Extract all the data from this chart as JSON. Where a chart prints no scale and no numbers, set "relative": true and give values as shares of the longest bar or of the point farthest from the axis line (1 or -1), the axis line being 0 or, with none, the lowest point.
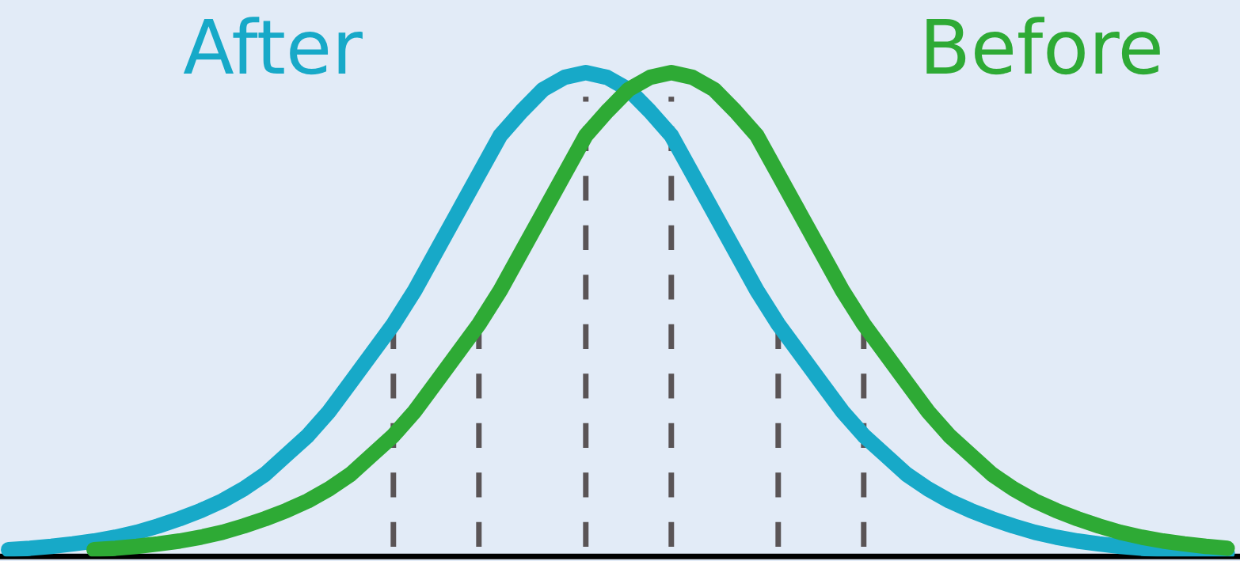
{
  "chart_data": {
    "type": "line",
    "relative": true,
    "categories": [
      null,
      null,
      null,
      null,
      null,
      null,
      null,
      null,
      null,
      null,
      null,
      null,
      null,
      null,
      null,
      null,
      null,
      null,
      null,
      null,
      null,
      null,
      null,
      null,
      null,
      null,
      null,
      null,
      null,
      null,
      null,
      null,
      null,
      null,
      null,
      null,
      null,
      null,
      null,
      null,
      null,
      null,
      null,
      null,
      null,
      null,
      null,
      null,
      null,
      null,
      null,
      null,
      null,
      null,
      null,
      null,
      null,
      null
    ],
    "series": [
      {
        "name": "After",
        "color": "#17a9c8",
        "values": [
          0.014,
          0.017,
          0.021,
          0.026,
          0.032,
          0.04,
          0.05,
          0.063,
          0.078,
          0.095,
          0.115,
          0.14,
          0.17,
          0.21,
          0.25,
          0.3,
          0.36,
          0.42,
          0.48,
          0.55,
          0.63,
          0.71,
          0.79,
          0.87,
          0.92,
          0.965,
          0.99,
          1,
          0.99,
          0.965,
          0.92,
          0.87,
          0.79,
          0.71,
          0.63,
          0.55,
          0.48,
          0.42,
          0.36,
          0.3,
          0.25,
          0.21,
          0.17,
          0.14,
          0.115,
          0.095,
          0.078,
          0.063,
          0.05,
          0.04,
          0.032,
          0.026,
          0.021,
          0.017,
          0.014,
          0.012,
          0.01,
          0.008
        ]
      },
      {
        "name": "Before",
        "color": "#2eaa35",
        "values": [
          null,
          null,
          null,
          null,
          0.014,
          0.017,
          0.021,
          0.026,
          0.032,
          0.04,
          0.05,
          0.063,
          0.078,
          0.095,
          0.115,
          0.14,
          0.17,
          0.21,
          0.25,
          0.3,
          0.36,
          0.42,
          0.48,
          0.55,
          0.63,
          0.71,
          0.79,
          0.87,
          0.92,
          0.965,
          0.99,
          1,
          0.99,
          0.965,
          0.92,
          0.87,
          0.79,
          0.71,
          0.63,
          0.55,
          0.48,
          0.42,
          0.36,
          0.3,
          0.25,
          0.21,
          0.17,
          0.14,
          0.115,
          0.095,
          0.078,
          0.063,
          0.05,
          0.04,
          0.032,
          0.026,
          0.021,
          0.017
        ]
      }
    ],
    "legend": false,
    "marker": "none",
    "line_style": "solid"
  }
}
